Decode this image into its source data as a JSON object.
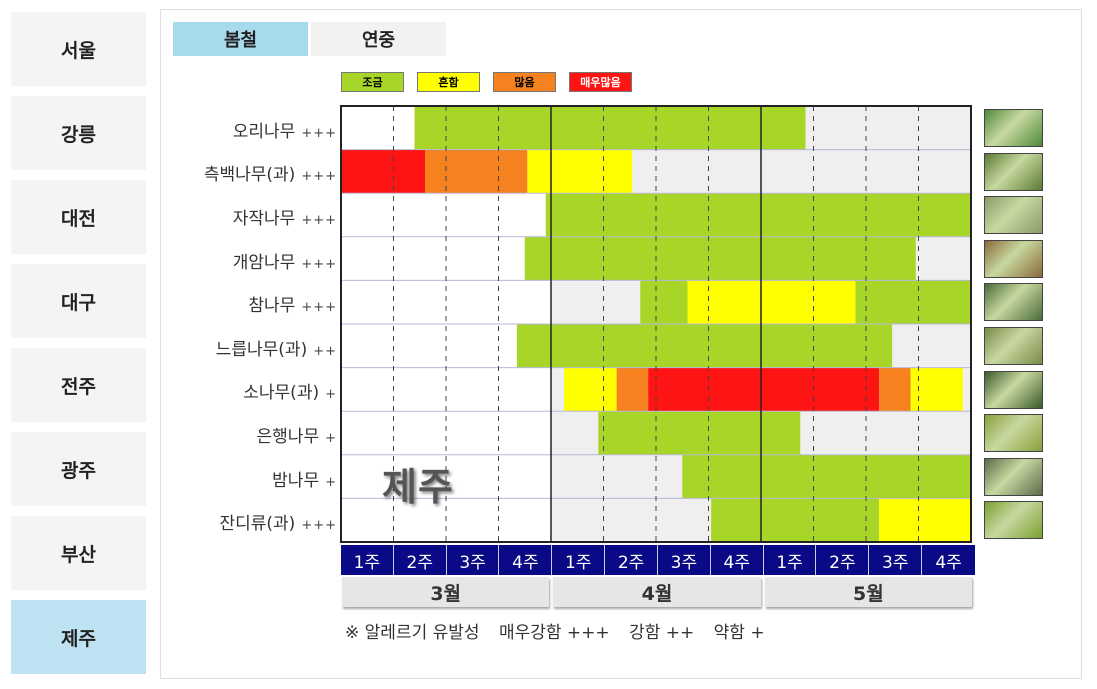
{
  "sidebar": {
    "items": [
      {
        "label": "서울",
        "active": false
      },
      {
        "label": "강릉",
        "active": false
      },
      {
        "label": "대전",
        "active": false
      },
      {
        "label": "대구",
        "active": false
      },
      {
        "label": "전주",
        "active": false
      },
      {
        "label": "광주",
        "active": false
      },
      {
        "label": "부산",
        "active": false
      },
      {
        "label": "제주",
        "active": true
      }
    ]
  },
  "tabs": [
    {
      "label": "봄철",
      "active": true
    },
    {
      "label": "연중",
      "active": false
    }
  ],
  "legend": [
    {
      "label": "조금",
      "color": "#a8d628"
    },
    {
      "label": "흔함",
      "color": "#ffff00"
    },
    {
      "label": "많음",
      "color": "#f5821f"
    },
    {
      "label": "매우많음",
      "color": "#ff1414"
    }
  ],
  "watermark": "제주",
  "note": {
    "prefix": "※ 알레르기 유발성",
    "levels": [
      "매우강함 +++",
      "강함 ++",
      "약함 +"
    ]
  },
  "chart_data": {
    "type": "heatmap",
    "x_unit": "week (3월 1주 – 5월 4주)",
    "months": [
      "3월",
      "4월",
      "5월"
    ],
    "weeks": [
      "1주",
      "2주",
      "3주",
      "4주"
    ],
    "level_colors": {
      "none": "#ffffff",
      "off": "#efefef",
      "조금": "#a8d628",
      "흔함": "#ffff00",
      "많음": "#f5821f",
      "매우많음": "#ff1414"
    },
    "rows": [
      {
        "name": "오리나무",
        "allergy": "+++",
        "segments": [
          [
            0,
            1.4,
            "none"
          ],
          [
            1.4,
            8.85,
            "조금"
          ],
          [
            8.85,
            12,
            "off"
          ]
        ]
      },
      {
        "name": "측백나무(과)",
        "allergy": "+++",
        "segments": [
          [
            0,
            1.6,
            "매우많음"
          ],
          [
            1.6,
            3.55,
            "많음"
          ],
          [
            3.55,
            5.55,
            "흔함"
          ],
          [
            5.55,
            8,
            "off"
          ],
          [
            8,
            12,
            "off"
          ]
        ]
      },
      {
        "name": "자작나무",
        "allergy": "+++",
        "segments": [
          [
            0,
            3.9,
            "none"
          ],
          [
            3.9,
            12,
            "조금"
          ]
        ]
      },
      {
        "name": "개암나무",
        "allergy": "+++",
        "segments": [
          [
            0,
            3.5,
            "none"
          ],
          [
            3.5,
            10.95,
            "조금"
          ],
          [
            10.95,
            12,
            "off"
          ]
        ]
      },
      {
        "name": "참나무",
        "allergy": "+++",
        "segments": [
          [
            0,
            4,
            "none"
          ],
          [
            4,
            5.7,
            "off"
          ],
          [
            5.7,
            6.6,
            "조금"
          ],
          [
            6.6,
            9.8,
            "흔함"
          ],
          [
            9.8,
            12,
            "조금"
          ]
        ]
      },
      {
        "name": "느릅나무(과)",
        "allergy": "++",
        "segments": [
          [
            0,
            3.35,
            "none"
          ],
          [
            3.35,
            10.5,
            "조금"
          ],
          [
            10.5,
            12,
            "off"
          ]
        ]
      },
      {
        "name": "소나무(과)",
        "allergy": "+",
        "segments": [
          [
            0,
            4,
            "none"
          ],
          [
            4,
            4.25,
            "off"
          ],
          [
            4.25,
            5.25,
            "흔함"
          ],
          [
            5.25,
            5.85,
            "많음"
          ],
          [
            5.85,
            10.25,
            "매우많음"
          ],
          [
            10.25,
            10.85,
            "많음"
          ],
          [
            10.85,
            11.85,
            "흔함"
          ],
          [
            11.85,
            12,
            "off"
          ]
        ]
      },
      {
        "name": "은행나무",
        "allergy": "+",
        "segments": [
          [
            0,
            4,
            "none"
          ],
          [
            4,
            4.9,
            "off"
          ],
          [
            4.9,
            8.75,
            "조금"
          ],
          [
            8.75,
            12,
            "off"
          ]
        ]
      },
      {
        "name": "밤나무",
        "allergy": "+",
        "segments": [
          [
            0,
            4,
            "none"
          ],
          [
            4,
            6.5,
            "off"
          ],
          [
            6.5,
            12,
            "조금"
          ]
        ]
      },
      {
        "name": "잔디류(과)",
        "allergy": "+++",
        "segments": [
          [
            0,
            4,
            "none"
          ],
          [
            4,
            7.05,
            "off"
          ],
          [
            7.05,
            10.25,
            "조금"
          ],
          [
            10.25,
            12,
            "흔함"
          ]
        ]
      }
    ]
  }
}
